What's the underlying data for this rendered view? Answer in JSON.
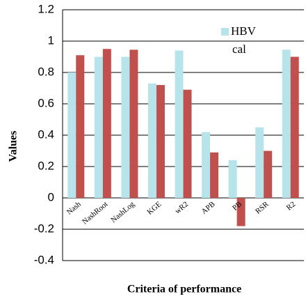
{
  "chart_data": {
    "type": "bar",
    "x_label": "Criteria of performance",
    "y_label": "Values",
    "categories": [
      "Nash",
      "NashRoot",
      "NashLog",
      "KGE",
      "wR2",
      "APB",
      "PB",
      "RSR",
      "R2"
    ],
    "series": [
      {
        "name": "HBV",
        "color": "#b7e4ea",
        "values": [
          0.8,
          0.9,
          0.9,
          0.73,
          0.94,
          0.42,
          0.24,
          0.45,
          0.945
        ]
      },
      {
        "name": "cal",
        "color": "#c0504d",
        "values": [
          0.91,
          0.95,
          0.945,
          0.72,
          0.69,
          0.29,
          -0.18,
          0.3,
          0.9
        ]
      }
    ],
    "ylim": [
      -0.4,
      1.2
    ],
    "yticks": [
      -0.4,
      -0.2,
      0,
      0.2,
      0.4,
      0.6,
      0.8,
      1,
      1.2
    ],
    "grid": true
  }
}
